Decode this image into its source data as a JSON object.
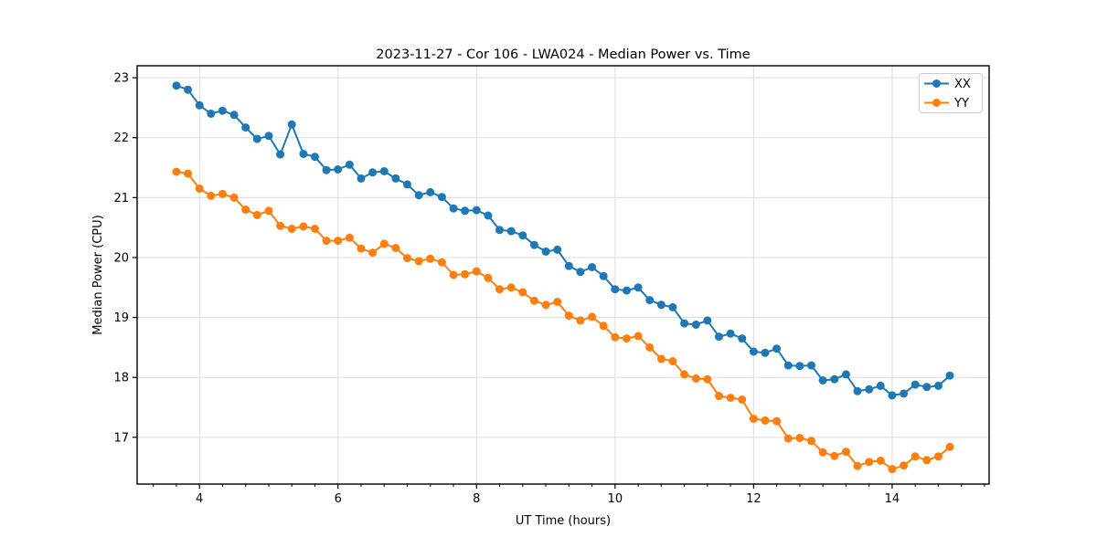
{
  "chart_data": {
    "type": "line",
    "title": "2023-11-27 - Cor 106 - LWA024 - Median Power vs. Time",
    "xlabel": "UT Time (hours)",
    "ylabel": "Median Power (CPU)",
    "xlim": [
      3.1,
      15.4
    ],
    "ylim": [
      16.22,
      23.2
    ],
    "x_ticks": [
      4,
      6,
      8,
      10,
      12,
      14
    ],
    "y_ticks": [
      17,
      18,
      19,
      20,
      21,
      22,
      23
    ],
    "x_minor_tick_step": 0.33333,
    "grid": true,
    "grid_color": "#dcdcdc",
    "legend_position": "upper right",
    "x": [
      3.667,
      3.833,
      4.0,
      4.167,
      4.333,
      4.5,
      4.667,
      4.833,
      5.0,
      5.167,
      5.333,
      5.5,
      5.667,
      5.833,
      6.0,
      6.167,
      6.333,
      6.5,
      6.667,
      6.833,
      7.0,
      7.167,
      7.333,
      7.5,
      7.667,
      7.833,
      8.0,
      8.167,
      8.333,
      8.5,
      8.667,
      8.833,
      9.0,
      9.167,
      9.333,
      9.5,
      9.667,
      9.833,
      10.0,
      10.167,
      10.333,
      10.5,
      10.667,
      10.833,
      11.0,
      11.167,
      11.333,
      11.5,
      11.667,
      11.833,
      12.0,
      12.167,
      12.333,
      12.5,
      12.667,
      12.833,
      13.0,
      13.167,
      13.333,
      13.5,
      13.667,
      13.833,
      14.0,
      14.167,
      14.333,
      14.5,
      14.667,
      14.833
    ],
    "series": [
      {
        "name": "XX",
        "color": "#1f77b4",
        "marker": "circle",
        "values": [
          22.87,
          22.8,
          22.54,
          22.4,
          22.45,
          22.38,
          22.17,
          21.98,
          22.03,
          21.72,
          22.22,
          21.73,
          21.68,
          21.46,
          21.47,
          21.55,
          21.32,
          21.42,
          21.44,
          21.32,
          21.22,
          21.04,
          21.09,
          21.01,
          20.82,
          20.78,
          20.79,
          20.7,
          20.46,
          20.44,
          20.37,
          20.21,
          20.1,
          20.13,
          19.86,
          19.76,
          19.84,
          19.69,
          19.47,
          19.45,
          19.5,
          19.29,
          19.21,
          19.17,
          18.9,
          18.88,
          18.95,
          18.68,
          18.73,
          18.65,
          18.43,
          18.41,
          18.48,
          18.2,
          18.19,
          18.2,
          17.95,
          17.97,
          18.05,
          17.77,
          17.8,
          17.86,
          17.7,
          17.73,
          17.88,
          17.84,
          17.86,
          18.03
        ]
      },
      {
        "name": "YY",
        "color": "#ff7f0e",
        "marker": "circle",
        "values": [
          21.43,
          21.4,
          21.15,
          21.03,
          21.06,
          21.0,
          20.8,
          20.71,
          20.78,
          20.53,
          20.48,
          20.52,
          20.48,
          20.28,
          20.28,
          20.33,
          20.15,
          20.08,
          20.23,
          20.16,
          19.99,
          19.94,
          19.98,
          19.92,
          19.71,
          19.72,
          19.77,
          19.66,
          19.47,
          19.5,
          19.42,
          19.28,
          19.21,
          19.26,
          19.03,
          18.95,
          19.01,
          18.86,
          18.67,
          18.65,
          18.69,
          18.5,
          18.31,
          18.27,
          18.05,
          17.98,
          17.97,
          17.69,
          17.66,
          17.63,
          17.31,
          17.28,
          17.27,
          16.98,
          16.99,
          16.94,
          16.75,
          16.69,
          16.76,
          16.52,
          16.59,
          16.61,
          16.47,
          16.53,
          16.68,
          16.62,
          16.68,
          16.84
        ]
      }
    ]
  }
}
